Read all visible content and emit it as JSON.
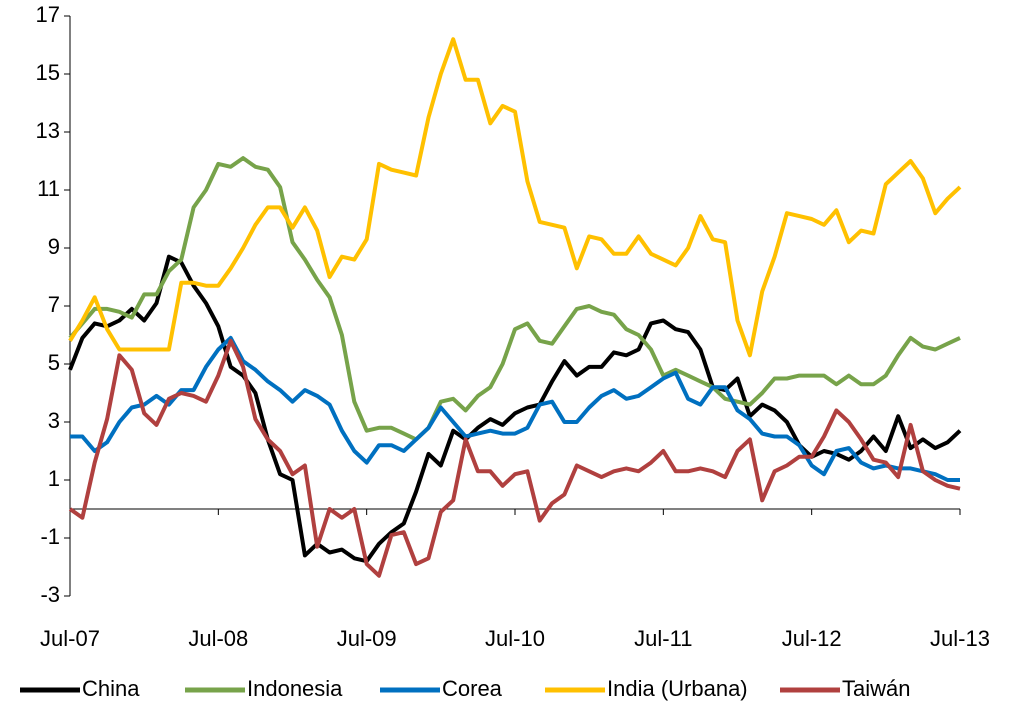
{
  "chart_data": {
    "type": "line",
    "categories": [
      "Jul-07",
      null,
      null,
      null,
      null,
      null,
      null,
      null,
      null,
      null,
      null,
      null,
      "Jul-08",
      null,
      null,
      null,
      null,
      null,
      null,
      null,
      null,
      null,
      null,
      null,
      "Jul-09",
      null,
      null,
      null,
      null,
      null,
      null,
      null,
      null,
      null,
      null,
      null,
      "Jul-10",
      null,
      null,
      null,
      null,
      null,
      null,
      null,
      null,
      null,
      null,
      null,
      "Jul-11",
      null,
      null,
      null,
      null,
      null,
      null,
      null,
      null,
      null,
      null,
      null,
      "Jul-12",
      null,
      null,
      null,
      null,
      null,
      null,
      null,
      null,
      null,
      null,
      null,
      "Jul-13"
    ],
    "series": [
      {
        "name": "China",
        "color": "#000000",
        "values": [
          4.8,
          5.9,
          6.4,
          6.3,
          6.5,
          6.9,
          6.5,
          7.1,
          8.7,
          8.5,
          7.7,
          7.1,
          6.3,
          4.9,
          4.6,
          4.0,
          2.4,
          1.2,
          1.0,
          -1.6,
          -1.2,
          -1.5,
          -1.4,
          -1.7,
          -1.8,
          -1.2,
          -0.8,
          -0.5,
          0.6,
          1.9,
          1.5,
          2.7,
          2.4,
          2.8,
          3.1,
          2.9,
          3.3,
          3.5,
          3.6,
          4.4,
          5.1,
          4.6,
          4.9,
          4.9,
          5.4,
          5.3,
          5.5,
          6.4,
          6.5,
          6.2,
          6.1,
          5.5,
          4.2,
          4.1,
          4.5,
          3.2,
          3.6,
          3.4,
          3.0,
          2.2,
          1.8,
          2.0,
          1.9,
          1.7,
          2.0,
          2.5,
          2.0,
          3.2,
          2.1,
          2.4,
          2.1,
          2.3,
          2.7
        ]
      },
      {
        "name": "Indonesia",
        "color": "#77a34a",
        "values": [
          5.9,
          6.4,
          6.9,
          6.9,
          6.8,
          6.6,
          7.4,
          7.4,
          8.2,
          8.6,
          10.4,
          11.0,
          11.9,
          11.8,
          12.1,
          11.8,
          11.7,
          11.1,
          9.2,
          8.6,
          7.9,
          7.3,
          6.0,
          3.7,
          2.7,
          2.8,
          2.8,
          2.6,
          2.4,
          2.8,
          3.7,
          3.8,
          3.4,
          3.9,
          4.2,
          5.0,
          6.2,
          6.4,
          5.8,
          5.7,
          6.3,
          6.9,
          7.0,
          6.8,
          6.7,
          6.2,
          6.0,
          5.5,
          4.6,
          4.8,
          4.6,
          4.4,
          4.2,
          3.8,
          3.7,
          3.6,
          4.0,
          4.5,
          4.5,
          4.6,
          4.6,
          4.6,
          4.3,
          4.6,
          4.3,
          4.3,
          4.6,
          5.3,
          5.9,
          5.6,
          5.5,
          5.7,
          5.9
        ]
      },
      {
        "name": "Corea",
        "color": "#0070c0",
        "values": [
          2.5,
          2.5,
          2.0,
          2.3,
          3.0,
          3.5,
          3.6,
          3.9,
          3.6,
          4.1,
          4.1,
          4.9,
          5.5,
          5.9,
          5.1,
          4.8,
          4.4,
          4.1,
          3.7,
          4.1,
          3.9,
          3.6,
          2.7,
          2.0,
          1.6,
          2.2,
          2.2,
          2.0,
          2.4,
          2.8,
          3.5,
          3.0,
          2.5,
          2.6,
          2.7,
          2.6,
          2.6,
          2.8,
          3.6,
          3.7,
          3.0,
          3.0,
          3.5,
          3.9,
          4.1,
          3.8,
          3.9,
          4.2,
          4.5,
          4.7,
          3.8,
          3.6,
          4.2,
          4.2,
          3.4,
          3.1,
          2.6,
          2.5,
          2.5,
          2.2,
          1.5,
          1.2,
          2.0,
          2.1,
          1.6,
          1.4,
          1.5,
          1.4,
          1.4,
          1.3,
          1.2,
          1.0,
          1.0
        ]
      },
      {
        "name": "India (Urbana)",
        "color": "#ffc000",
        "values": [
          5.8,
          6.5,
          7.3,
          6.2,
          5.5,
          5.5,
          5.5,
          5.5,
          5.5,
          7.8,
          7.8,
          7.7,
          7.7,
          8.3,
          9.0,
          9.8,
          10.4,
          10.4,
          9.7,
          10.4,
          9.6,
          8.0,
          8.7,
          8.6,
          9.3,
          11.9,
          11.7,
          11.6,
          11.5,
          13.5,
          15.0,
          16.2,
          14.8,
          14.8,
          13.3,
          13.9,
          13.7,
          11.3,
          9.9,
          9.8,
          9.7,
          8.3,
          9.4,
          9.3,
          8.8,
          8.8,
          9.4,
          8.8,
          8.6,
          8.4,
          9.0,
          10.1,
          9.3,
          9.2,
          6.5,
          5.3,
          7.5,
          8.7,
          10.2,
          10.1,
          10.0,
          9.8,
          10.3,
          9.2,
          9.6,
          9.5,
          11.2,
          11.6,
          12.0,
          11.4,
          10.2,
          10.7,
          11.1
        ]
      },
      {
        "name": "Taiwán",
        "color": "#b0403f",
        "values": [
          0.0,
          -0.3,
          1.6,
          3.1,
          5.3,
          4.8,
          3.3,
          2.9,
          3.8,
          4.0,
          3.9,
          3.7,
          4.6,
          5.8,
          4.9,
          3.1,
          2.4,
          2.0,
          1.2,
          1.5,
          -1.3,
          0.0,
          -0.3,
          0.0,
          -1.9,
          -2.3,
          -0.9,
          -0.8,
          -1.9,
          -1.7,
          -0.1,
          0.3,
          2.4,
          1.3,
          1.3,
          0.8,
          1.2,
          1.3,
          -0.4,
          0.2,
          0.5,
          1.5,
          1.3,
          1.1,
          1.3,
          1.4,
          1.3,
          1.6,
          2.0,
          1.3,
          1.3,
          1.4,
          1.3,
          1.1,
          2.0,
          2.4,
          0.3,
          1.3,
          1.5,
          1.8,
          1.8,
          2.5,
          3.4,
          3.0,
          2.4,
          1.7,
          1.6,
          1.1,
          2.9,
          1.3,
          1.0,
          0.8,
          0.7
        ]
      }
    ],
    "ylim": [
      -3,
      17
    ],
    "yticks": [
      -3,
      -1,
      1,
      3,
      5,
      7,
      9,
      11,
      13,
      15,
      17
    ],
    "grid": false,
    "legend": "bottom"
  }
}
